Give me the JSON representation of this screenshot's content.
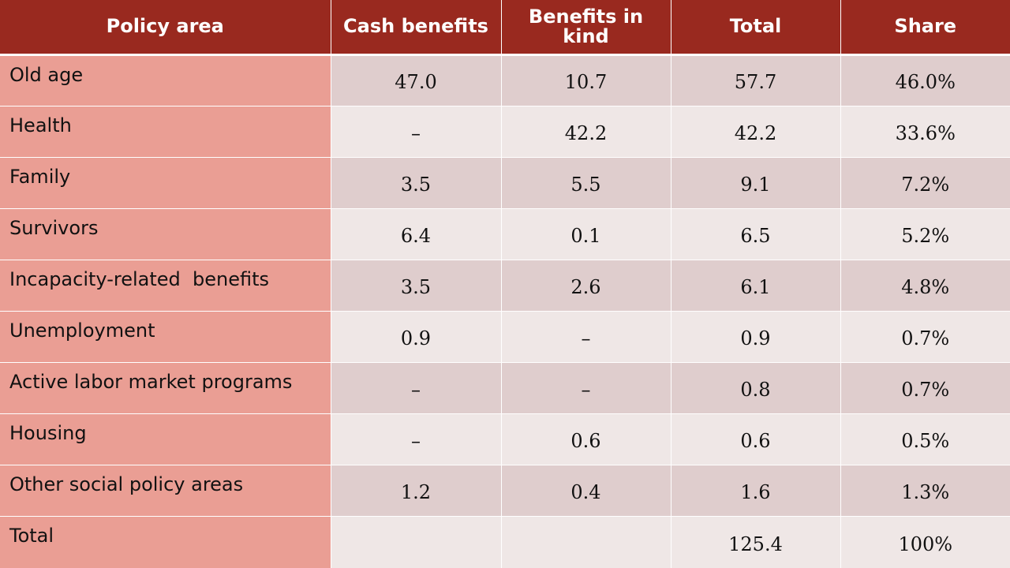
{
  "table": {
    "headers": [
      "Policy area",
      "Cash benefits",
      "Benefits in kind",
      "Total",
      "Share"
    ],
    "rows": [
      {
        "area": "Old age",
        "cash": "47.0",
        "kind": "10.7",
        "total": "57.7",
        "share": "46.0%"
      },
      {
        "area": "Health",
        "cash": "–",
        "kind": "42.2",
        "total": "42.2",
        "share": "33.6%"
      },
      {
        "area": "Family",
        "cash": "3.5",
        "kind": "5.5",
        "total": "9.1",
        "share": "7.2%"
      },
      {
        "area": "Survivors",
        "cash": "6.4",
        "kind": "0.1",
        "total": "6.5",
        "share": "5.2%"
      },
      {
        "area": "Incapacity-related  benefits",
        "cash": "3.5",
        "kind": "2.6",
        "total": "6.1",
        "share": "4.8%"
      },
      {
        "area": "Unemployment",
        "cash": "0.9",
        "kind": "–",
        "total": "0.9",
        "share": "0.7%"
      },
      {
        "area": "Active labor market programs",
        "cash": "–",
        "kind": "–",
        "total": "0.8",
        "share": "0.7%"
      },
      {
        "area": "Housing",
        "cash": "–",
        "kind": "0.6",
        "total": "0.6",
        "share": "0.5%"
      },
      {
        "area": "Other social policy areas",
        "cash": "1.2",
        "kind": "0.4",
        "total": "1.6",
        "share": "1.3%"
      },
      {
        "area": "Total",
        "cash": "",
        "kind": "",
        "total": "125.4",
        "share": "100%"
      }
    ]
  }
}
